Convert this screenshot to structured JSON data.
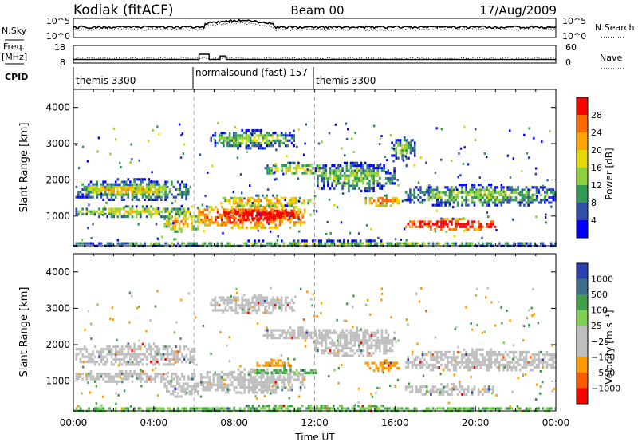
{
  "header": {
    "station": "Kodiak (fitACF)",
    "beam": "Beam 00",
    "date": "17/Aug/2009"
  },
  "noise_panel": {
    "left_label": "N.Sky",
    "right_label": "N.Search",
    "ticks_left": [
      "10^5",
      "10^0"
    ],
    "ticks_right": [
      "10^5",
      "10^0"
    ]
  },
  "freq_panel": {
    "left_label_1": "Freq.",
    "left_label_2": "[MHz]",
    "right_label": "Nave",
    "ticks_left": [
      "18",
      "8"
    ],
    "ticks_right": [
      "60",
      "0"
    ]
  },
  "cpid": {
    "label": "CPID",
    "segments": [
      {
        "name": "themis 3300",
        "start_hour": 0
      },
      {
        "name": "normalsound (fast) 157",
        "start_hour": 6
      },
      {
        "name": "themis 3300",
        "start_hour": 12
      }
    ]
  },
  "time_axis": {
    "title": "Time UT",
    "ticks": [
      "00:00",
      "04:00",
      "08:00",
      "12:00",
      "16:00",
      "20:00",
      "00:00"
    ]
  },
  "range_axis": {
    "title": "Slant Range [km]",
    "ticks": [
      "1000",
      "2000",
      "3000",
      "4000"
    ]
  },
  "power_bar": {
    "title": "Power [dB]",
    "labels": [
      "28",
      "24",
      "20",
      "16",
      "12",
      "8",
      "4"
    ],
    "colors": [
      "#ff0000",
      "#ff6a00",
      "#ffa500",
      "#e8d800",
      "#8fd13a",
      "#2e9a53",
      "#2f4fa8",
      "#0000ff"
    ]
  },
  "velocity_bar": {
    "title": "Velocity [m s⁻¹]",
    "labels": [
      "1000",
      "500",
      "100",
      "25",
      "−25",
      "−100",
      "−500",
      "−1000"
    ],
    "colors": [
      "#2a3fb0",
      "#3c6e8c",
      "#3fa04a",
      "#7ed050",
      "#bebebe",
      "#bebebe",
      "#ff9a00",
      "#ff5a00",
      "#ff0000"
    ]
  },
  "chart_data": [
    {
      "type": "line",
      "name": "noise",
      "x_unit": "hours UT",
      "xlim": [
        0,
        24
      ],
      "y_scale": "log",
      "ylim": [
        1,
        100000
      ]
    },
    {
      "type": "line",
      "name": "frequency",
      "x_unit": "hours UT",
      "xlim": [
        0,
        24
      ],
      "ylim": [
        8,
        18
      ],
      "segments": [
        {
          "start": 0,
          "end": 6.25,
          "freq": 10
        },
        {
          "start": 6.25,
          "end": 6.75,
          "freq": 13
        },
        {
          "start": 6.75,
          "end": 7.3,
          "freq": 10
        },
        {
          "start": 7.3,
          "end": 7.6,
          "freq": 12
        },
        {
          "start": 7.6,
          "end": 24,
          "freq": 10
        }
      ]
    },
    {
      "type": "heatmap",
      "name": "power",
      "x_unit": "hours UT",
      "y_unit": "km",
      "xlim": [
        0,
        24
      ],
      "ylim": [
        180,
        4500
      ],
      "clim": [
        0,
        32
      ],
      "blobs": [
        {
          "t0": 0.1,
          "t1": 5.8,
          "r0": 1450,
          "r1": 2050,
          "level": 3
        },
        {
          "t0": 0.5,
          "t1": 4.5,
          "r0": 1600,
          "r1": 1900,
          "level": 5
        },
        {
          "t0": 0.1,
          "t1": 6,
          "r0": 1000,
          "r1": 1300,
          "level": 4
        },
        {
          "t0": 4.5,
          "t1": 6.2,
          "r0": 600,
          "r1": 1100,
          "level": 5
        },
        {
          "t0": 6.2,
          "t1": 11.5,
          "r0": 700,
          "r1": 1350,
          "level": 7
        },
        {
          "t0": 7.5,
          "t1": 11,
          "r0": 900,
          "r1": 1250,
          "level": 8
        },
        {
          "t0": 7.2,
          "t1": 12,
          "r0": 1300,
          "r1": 1600,
          "level": 5
        },
        {
          "t0": 6.8,
          "t1": 11,
          "r0": 2900,
          "r1": 3400,
          "level": 3
        },
        {
          "t0": 9.5,
          "t1": 12.5,
          "r0": 2150,
          "r1": 2500,
          "level": 4
        },
        {
          "t0": 12,
          "t1": 16,
          "r0": 1700,
          "r1": 2500,
          "level": 3
        },
        {
          "t0": 14.5,
          "t1": 16.2,
          "r0": 1300,
          "r1": 1600,
          "level": 6
        },
        {
          "t0": 15.8,
          "t1": 17,
          "r0": 2600,
          "r1": 3200,
          "level": 3
        },
        {
          "t0": 16.5,
          "t1": 21,
          "r0": 650,
          "r1": 950,
          "level": 8
        },
        {
          "t0": 16.5,
          "t1": 24,
          "r0": 1300,
          "r1": 1900,
          "level": 3
        },
        {
          "t0": 0,
          "t1": 24,
          "r0": 180,
          "r1": 350,
          "level": 3
        }
      ]
    },
    {
      "type": "heatmap",
      "name": "velocity",
      "x_unit": "hours UT",
      "y_unit": "km",
      "xlim": [
        0,
        24
      ],
      "ylim": [
        180,
        4500
      ],
      "clim": [
        -1000,
        1000
      ],
      "blobs": [
        {
          "t0": 0.1,
          "t1": 6,
          "r0": 1450,
          "r1": 2050,
          "v": 0
        },
        {
          "t0": 0.1,
          "t1": 6,
          "r0": 1000,
          "r1": 1300,
          "v": 0
        },
        {
          "t0": 4.5,
          "t1": 6.2,
          "r0": 600,
          "r1": 1100,
          "v": -10
        },
        {
          "t0": 6.2,
          "t1": 11.5,
          "r0": 700,
          "r1": 1350,
          "v": 0
        },
        {
          "t0": 9,
          "t1": 12,
          "r0": 1200,
          "r1": 1400,
          "v": 60
        },
        {
          "t0": 9,
          "t1": 11,
          "r0": 1400,
          "r1": 1600,
          "v": -200
        },
        {
          "t0": 6.8,
          "t1": 11,
          "r0": 2900,
          "r1": 3400,
          "v": 0
        },
        {
          "t0": 9.5,
          "t1": 12.5,
          "r0": 2150,
          "r1": 2500,
          "v": 0
        },
        {
          "t0": 12,
          "t1": 16,
          "r0": 1700,
          "r1": 2500,
          "v": 0
        },
        {
          "t0": 14.5,
          "t1": 16.2,
          "r0": 1300,
          "r1": 1600,
          "v": -200
        },
        {
          "t0": 16.5,
          "t1": 21,
          "r0": 650,
          "r1": 950,
          "v": 0
        },
        {
          "t0": 16.5,
          "t1": 24,
          "r0": 1300,
          "r1": 1900,
          "v": 0
        },
        {
          "t0": 0,
          "t1": 24,
          "r0": 180,
          "r1": 350,
          "v": 60
        }
      ]
    }
  ]
}
